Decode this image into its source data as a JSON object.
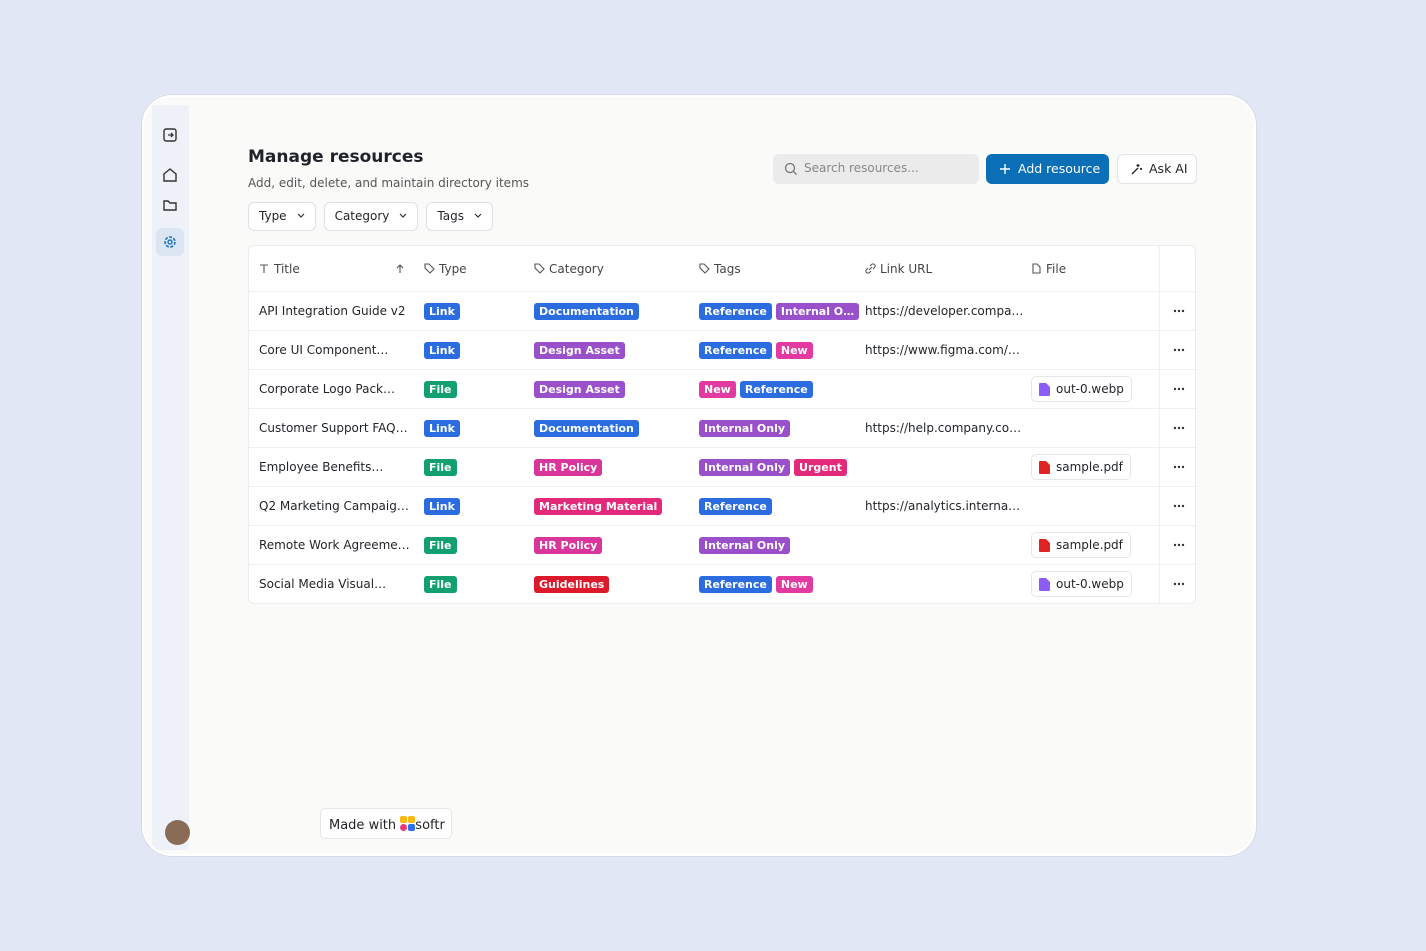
{
  "header": {
    "title": "Manage resources",
    "subtitle": "Add, edit, delete, and maintain directory items"
  },
  "search_placeholder": "Search resources...",
  "buttons": {
    "add": "Add resource",
    "ask": "Ask AI"
  },
  "filters": [
    "Type",
    "Category",
    "Tags"
  ],
  "tag_colors": {
    "Link": "#2b6de0",
    "File": "#12a071",
    "Documentation": "#2b6de0",
    "Design Asset": "#9a4fcb",
    "HR Policy": "#d9359a",
    "Marketing Material": "#e3297a",
    "Guidelines": "#dc1a2c",
    "Reference": "#2b6de0",
    "Internal O…": "#9a4fcb",
    "Internal Only": "#9a4fcb",
    "New": "#e23aa0",
    "Urgent": "#e3297a"
  },
  "table": {
    "columns": [
      "Title",
      "Type",
      "Category",
      "Tags",
      "Link URL",
      "File"
    ],
    "rows": [
      {
        "title": "API Integration Guide v2",
        "type": "Link",
        "category": "Documentation",
        "tags": [
          "Reference",
          "Internal O…"
        ],
        "url": "https://developer.compa…"
      },
      {
        "title": "Core UI Component…",
        "type": "Link",
        "category": "Design Asset",
        "tags": [
          "Reference",
          "New"
        ],
        "url": "https://www.figma.com/…"
      },
      {
        "title": "Corporate Logo Pack…",
        "type": "File",
        "category": "Design Asset",
        "tags": [
          "New",
          "Reference"
        ],
        "file": {
          "name": "out-0.webp",
          "icon_color": "#8b5cf6"
        }
      },
      {
        "title": "Customer Support FAQ…",
        "type": "Link",
        "category": "Documentation",
        "tags": [
          "Internal Only"
        ],
        "url": "https://help.company.co…"
      },
      {
        "title": "Employee Benefits…",
        "type": "File",
        "category": "HR Policy",
        "tags": [
          "Internal Only",
          "Urgent"
        ],
        "file": {
          "name": "sample.pdf",
          "icon_color": "#e02424"
        }
      },
      {
        "title": "Q2 Marketing Campaig…",
        "type": "Link",
        "category": "Marketing Material",
        "tags": [
          "Reference"
        ],
        "url": "https://analytics.interna…"
      },
      {
        "title": "Remote Work Agreeme…",
        "type": "File",
        "category": "HR Policy",
        "tags": [
          "Internal Only"
        ],
        "file": {
          "name": "sample.pdf",
          "icon_color": "#e02424"
        }
      },
      {
        "title": "Social Media Visual…",
        "type": "File",
        "category": "Guidelines",
        "tags": [
          "Reference",
          "New"
        ],
        "file": {
          "name": "out-0.webp",
          "icon_color": "#8b5cf6"
        }
      }
    ]
  },
  "badge": {
    "made_with": "Made with",
    "brand": "softr"
  }
}
